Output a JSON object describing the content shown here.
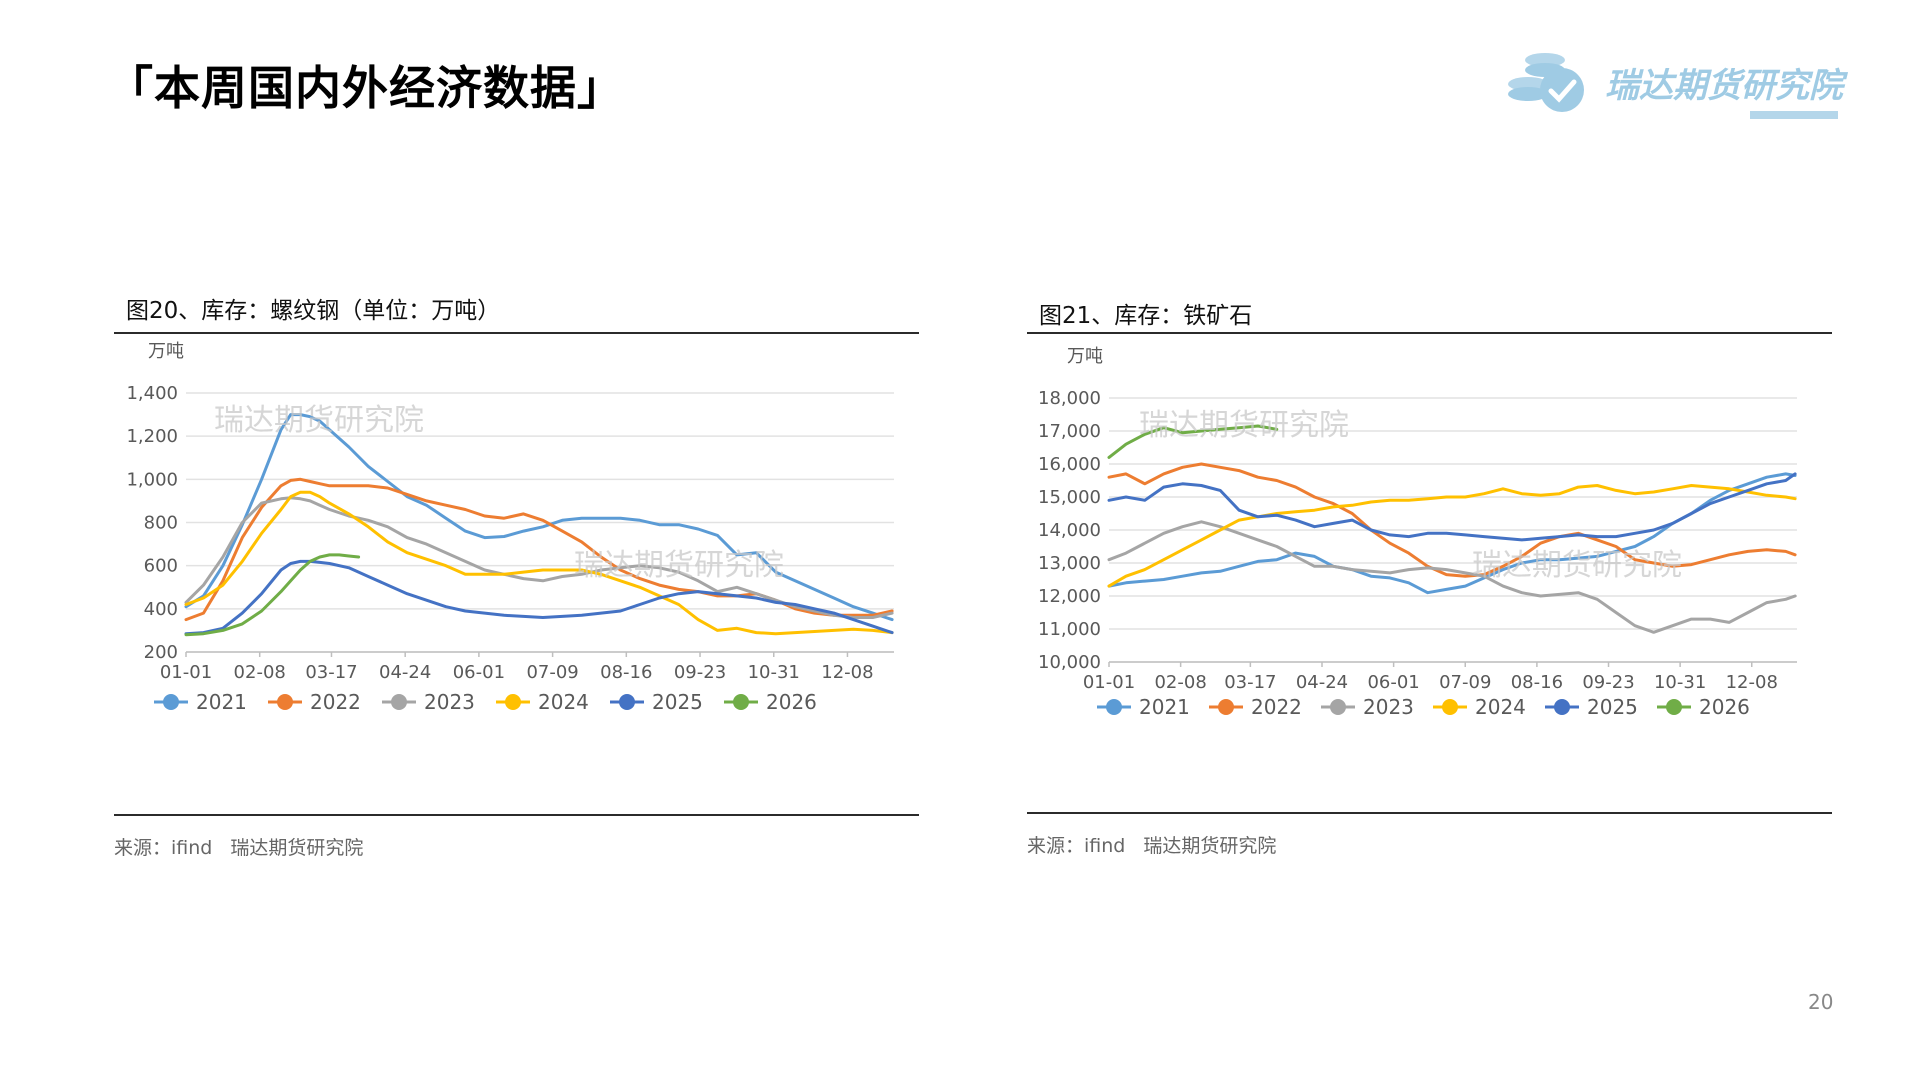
{
  "page": {
    "title": "「本周国内外经济数据」",
    "page_number": "20"
  },
  "logo": {
    "text": "瑞达期货研究院",
    "brand_color": "#9fcbe4"
  },
  "series_colors": {
    "2021": "#5b9bd5",
    "2022": "#ed7d31",
    "2023": "#a5a5a5",
    "2024": "#ffc000",
    "2025": "#4472c4",
    "2026": "#70ad47"
  },
  "charts": [
    {
      "id": "rebar",
      "title": "图20、库存：螺纹钢（单位：万吨）",
      "source": {
        "label": "来源：ifind",
        "org": "瑞达期货研究院"
      },
      "watermark": "瑞达期货研究院"
    },
    {
      "id": "iron-ore",
      "title": "图21、库存：铁矿石",
      "source": {
        "label": "来源：ifind",
        "org": "瑞达期货研究院"
      },
      "watermark": "瑞达期货研究院"
    }
  ],
  "chart_data": [
    {
      "type": "line",
      "title": "",
      "ylabel": "万吨",
      "ylim": [
        200,
        1400
      ],
      "yticks": [
        200,
        400,
        600,
        800,
        1000,
        1200,
        1400
      ],
      "xlim": [
        1,
        366
      ],
      "x_tick_labels": [
        "01-01",
        "02-08",
        "03-17",
        "04-24",
        "06-01",
        "07-09",
        "08-16",
        "09-23",
        "10-31",
        "12-08"
      ],
      "x_tick_days": [
        1,
        39,
        76,
        114,
        152,
        190,
        228,
        266,
        304,
        342
      ],
      "grid": true,
      "legend_position": "bottom",
      "series": [
        {
          "name": "2021",
          "x": [
            1,
            10,
            20,
            30,
            40,
            50,
            55,
            60,
            65,
            70,
            75,
            85,
            95,
            105,
            115,
            125,
            135,
            145,
            155,
            165,
            175,
            185,
            195,
            205,
            215,
            225,
            235,
            245,
            255,
            265,
            275,
            285,
            295,
            305,
            315,
            325,
            335,
            345,
            355,
            365
          ],
          "values": [
            410,
            460,
            600,
            790,
            1000,
            1230,
            1300,
            1300,
            1290,
            1270,
            1230,
            1150,
            1060,
            990,
            920,
            880,
            820,
            760,
            730,
            735,
            760,
            780,
            810,
            820,
            820,
            820,
            810,
            790,
            790,
            770,
            740,
            650,
            660,
            570,
            530,
            490,
            450,
            410,
            380,
            350
          ]
        },
        {
          "name": "2022",
          "x": [
            1,
            10,
            20,
            30,
            40,
            50,
            55,
            60,
            65,
            70,
            75,
            85,
            95,
            105,
            115,
            125,
            135,
            145,
            155,
            165,
            175,
            185,
            195,
            205,
            215,
            225,
            235,
            245,
            255,
            265,
            275,
            285,
            295,
            305,
            315,
            325,
            335,
            345,
            355,
            365
          ],
          "values": [
            350,
            380,
            530,
            730,
            870,
            970,
            995,
            1000,
            990,
            980,
            970,
            970,
            970,
            960,
            930,
            900,
            880,
            860,
            830,
            820,
            840,
            810,
            760,
            710,
            640,
            580,
            540,
            510,
            490,
            480,
            460,
            460,
            470,
            440,
            400,
            380,
            370,
            370,
            370,
            390
          ]
        },
        {
          "name": "2023",
          "x": [
            1,
            10,
            20,
            30,
            40,
            50,
            55,
            60,
            65,
            70,
            75,
            85,
            95,
            105,
            115,
            125,
            135,
            145,
            155,
            165,
            175,
            185,
            195,
            205,
            215,
            225,
            235,
            245,
            255,
            265,
            275,
            285,
            295,
            305,
            315,
            325,
            335,
            345,
            355,
            365
          ],
          "values": [
            430,
            510,
            640,
            800,
            890,
            910,
            915,
            910,
            900,
            880,
            860,
            830,
            810,
            780,
            730,
            700,
            660,
            620,
            580,
            560,
            540,
            530,
            550,
            560,
            580,
            590,
            600,
            590,
            570,
            530,
            480,
            500,
            470,
            440,
            410,
            390,
            370,
            360,
            360,
            380
          ]
        },
        {
          "name": "2024",
          "x": [
            1,
            10,
            20,
            30,
            40,
            50,
            55,
            60,
            65,
            70,
            75,
            85,
            95,
            105,
            115,
            125,
            135,
            145,
            155,
            165,
            175,
            185,
            195,
            205,
            215,
            225,
            235,
            245,
            255,
            265,
            275,
            285,
            295,
            305,
            315,
            325,
            335,
            345,
            355,
            365
          ],
          "values": [
            420,
            450,
            510,
            620,
            750,
            860,
            920,
            940,
            940,
            920,
            890,
            840,
            780,
            710,
            660,
            630,
            600,
            560,
            560,
            560,
            570,
            580,
            580,
            580,
            560,
            530,
            500,
            460,
            420,
            350,
            300,
            310,
            290,
            285,
            290,
            295,
            300,
            305,
            300,
            290
          ]
        },
        {
          "name": "2025",
          "x": [
            1,
            10,
            20,
            30,
            40,
            50,
            55,
            60,
            65,
            70,
            75,
            85,
            95,
            105,
            115,
            125,
            135,
            145,
            155,
            165,
            175,
            185,
            195,
            205,
            215,
            225,
            235,
            245,
            255,
            265,
            275,
            285,
            295,
            305,
            315,
            325,
            335,
            345,
            355,
            365
          ],
          "values": [
            285,
            290,
            310,
            380,
            470,
            580,
            610,
            620,
            620,
            615,
            610,
            590,
            550,
            510,
            470,
            440,
            410,
            390,
            380,
            370,
            365,
            360,
            365,
            370,
            380,
            390,
            420,
            450,
            470,
            480,
            470,
            460,
            450,
            430,
            420,
            400,
            380,
            350,
            320,
            290
          ]
        },
        {
          "name": "2026",
          "x": [
            1,
            10,
            20,
            30,
            40,
            50,
            55,
            60,
            65,
            70,
            75,
            80,
            85,
            90
          ],
          "values": [
            280,
            285,
            300,
            330,
            390,
            480,
            530,
            580,
            620,
            640,
            650,
            650,
            645,
            640
          ]
        }
      ]
    },
    {
      "type": "line",
      "title": "",
      "ylabel": "万吨",
      "ylim": [
        10000,
        18000
      ],
      "yticks": [
        10000,
        11000,
        12000,
        13000,
        14000,
        15000,
        16000,
        17000,
        18000
      ],
      "xlim": [
        1,
        366
      ],
      "x_tick_labels": [
        "01-01",
        "02-08",
        "03-17",
        "04-24",
        "06-01",
        "07-09",
        "08-16",
        "09-23",
        "10-31",
        "12-08"
      ],
      "x_tick_days": [
        1,
        39,
        76,
        114,
        152,
        190,
        228,
        266,
        304,
        342
      ],
      "grid": true,
      "legend_position": "bottom",
      "series": [
        {
          "name": "2021",
          "x": [
            1,
            10,
            20,
            30,
            40,
            50,
            60,
            70,
            80,
            90,
            100,
            110,
            120,
            130,
            140,
            150,
            160,
            170,
            180,
            190,
            200,
            210,
            220,
            230,
            240,
            250,
            260,
            270,
            280,
            290,
            300,
            310,
            320,
            330,
            340,
            350,
            360,
            365
          ],
          "values": [
            12300,
            12400,
            12450,
            12500,
            12600,
            12700,
            12750,
            12900,
            13050,
            13100,
            13300,
            13200,
            12900,
            12800,
            12600,
            12550,
            12400,
            12100,
            12200,
            12300,
            12550,
            12800,
            13000,
            13100,
            13100,
            13150,
            13200,
            13350,
            13500,
            13800,
            14200,
            14500,
            14900,
            15200,
            15400,
            15600,
            15700,
            15650
          ]
        },
        {
          "name": "2022",
          "x": [
            1,
            10,
            20,
            30,
            40,
            50,
            60,
            70,
            80,
            90,
            100,
            110,
            120,
            130,
            140,
            150,
            160,
            170,
            180,
            190,
            200,
            210,
            220,
            230,
            240,
            250,
            260,
            270,
            280,
            290,
            300,
            310,
            320,
            330,
            340,
            350,
            360,
            365
          ],
          "values": [
            15600,
            15700,
            15400,
            15700,
            15900,
            16000,
            15900,
            15800,
            15600,
            15500,
            15300,
            15000,
            14800,
            14500,
            14000,
            13600,
            13300,
            12900,
            12650,
            12600,
            12650,
            12900,
            13200,
            13600,
            13800,
            13900,
            13700,
            13500,
            13100,
            13000,
            12900,
            12950,
            13100,
            13250,
            13350,
            13400,
            13350,
            13250
          ]
        },
        {
          "name": "2023",
          "x": [
            1,
            10,
            20,
            30,
            40,
            50,
            60,
            70,
            80,
            90,
            100,
            110,
            120,
            130,
            140,
            150,
            160,
            170,
            180,
            190,
            200,
            210,
            220,
            230,
            240,
            250,
            260,
            270,
            280,
            290,
            300,
            310,
            320,
            330,
            340,
            350,
            360,
            365
          ],
          "values": [
            13100,
            13300,
            13600,
            13900,
            14100,
            14250,
            14100,
            13900,
            13700,
            13500,
            13200,
            12900,
            12900,
            12800,
            12750,
            12700,
            12800,
            12850,
            12800,
            12700,
            12600,
            12300,
            12100,
            12000,
            12050,
            12100,
            11900,
            11500,
            11100,
            10900,
            11100,
            11300,
            11300,
            11200,
            11500,
            11800,
            11900,
            12000
          ]
        },
        {
          "name": "2024",
          "x": [
            1,
            10,
            20,
            30,
            40,
            50,
            60,
            70,
            80,
            90,
            100,
            110,
            120,
            130,
            140,
            150,
            160,
            170,
            180,
            190,
            200,
            210,
            220,
            230,
            240,
            250,
            260,
            270,
            280,
            290,
            300,
            310,
            320,
            330,
            340,
            350,
            360,
            365
          ],
          "values": [
            12300,
            12600,
            12800,
            13100,
            13400,
            13700,
            14000,
            14300,
            14400,
            14500,
            14550,
            14600,
            14700,
            14750,
            14850,
            14900,
            14900,
            14950,
            15000,
            15000,
            15100,
            15250,
            15100,
            15050,
            15100,
            15300,
            15350,
            15200,
            15100,
            15150,
            15250,
            15350,
            15300,
            15250,
            15150,
            15050,
            15000,
            14950
          ]
        },
        {
          "name": "2025",
          "x": [
            1,
            10,
            20,
            30,
            40,
            50,
            60,
            70,
            80,
            90,
            100,
            110,
            120,
            130,
            140,
            150,
            160,
            170,
            180,
            190,
            200,
            210,
            220,
            230,
            240,
            250,
            260,
            270,
            280,
            290,
            300,
            310,
            320,
            330,
            340,
            350,
            360,
            365
          ],
          "values": [
            14900,
            15000,
            14900,
            15300,
            15400,
            15350,
            15200,
            14600,
            14400,
            14450,
            14300,
            14100,
            14200,
            14300,
            14000,
            13850,
            13800,
            13900,
            13900,
            13850,
            13800,
            13750,
            13700,
            13750,
            13800,
            13850,
            13800,
            13800,
            13900,
            14000,
            14200,
            14500,
            14800,
            15000,
            15200,
            15400,
            15500,
            15700
          ]
        },
        {
          "name": "2026",
          "x": [
            1,
            10,
            20,
            30,
            40,
            50,
            60,
            70,
            80,
            90
          ],
          "values": [
            16200,
            16600,
            16900,
            17100,
            16950,
            17000,
            17050,
            17100,
            17150,
            17050
          ]
        }
      ]
    }
  ]
}
